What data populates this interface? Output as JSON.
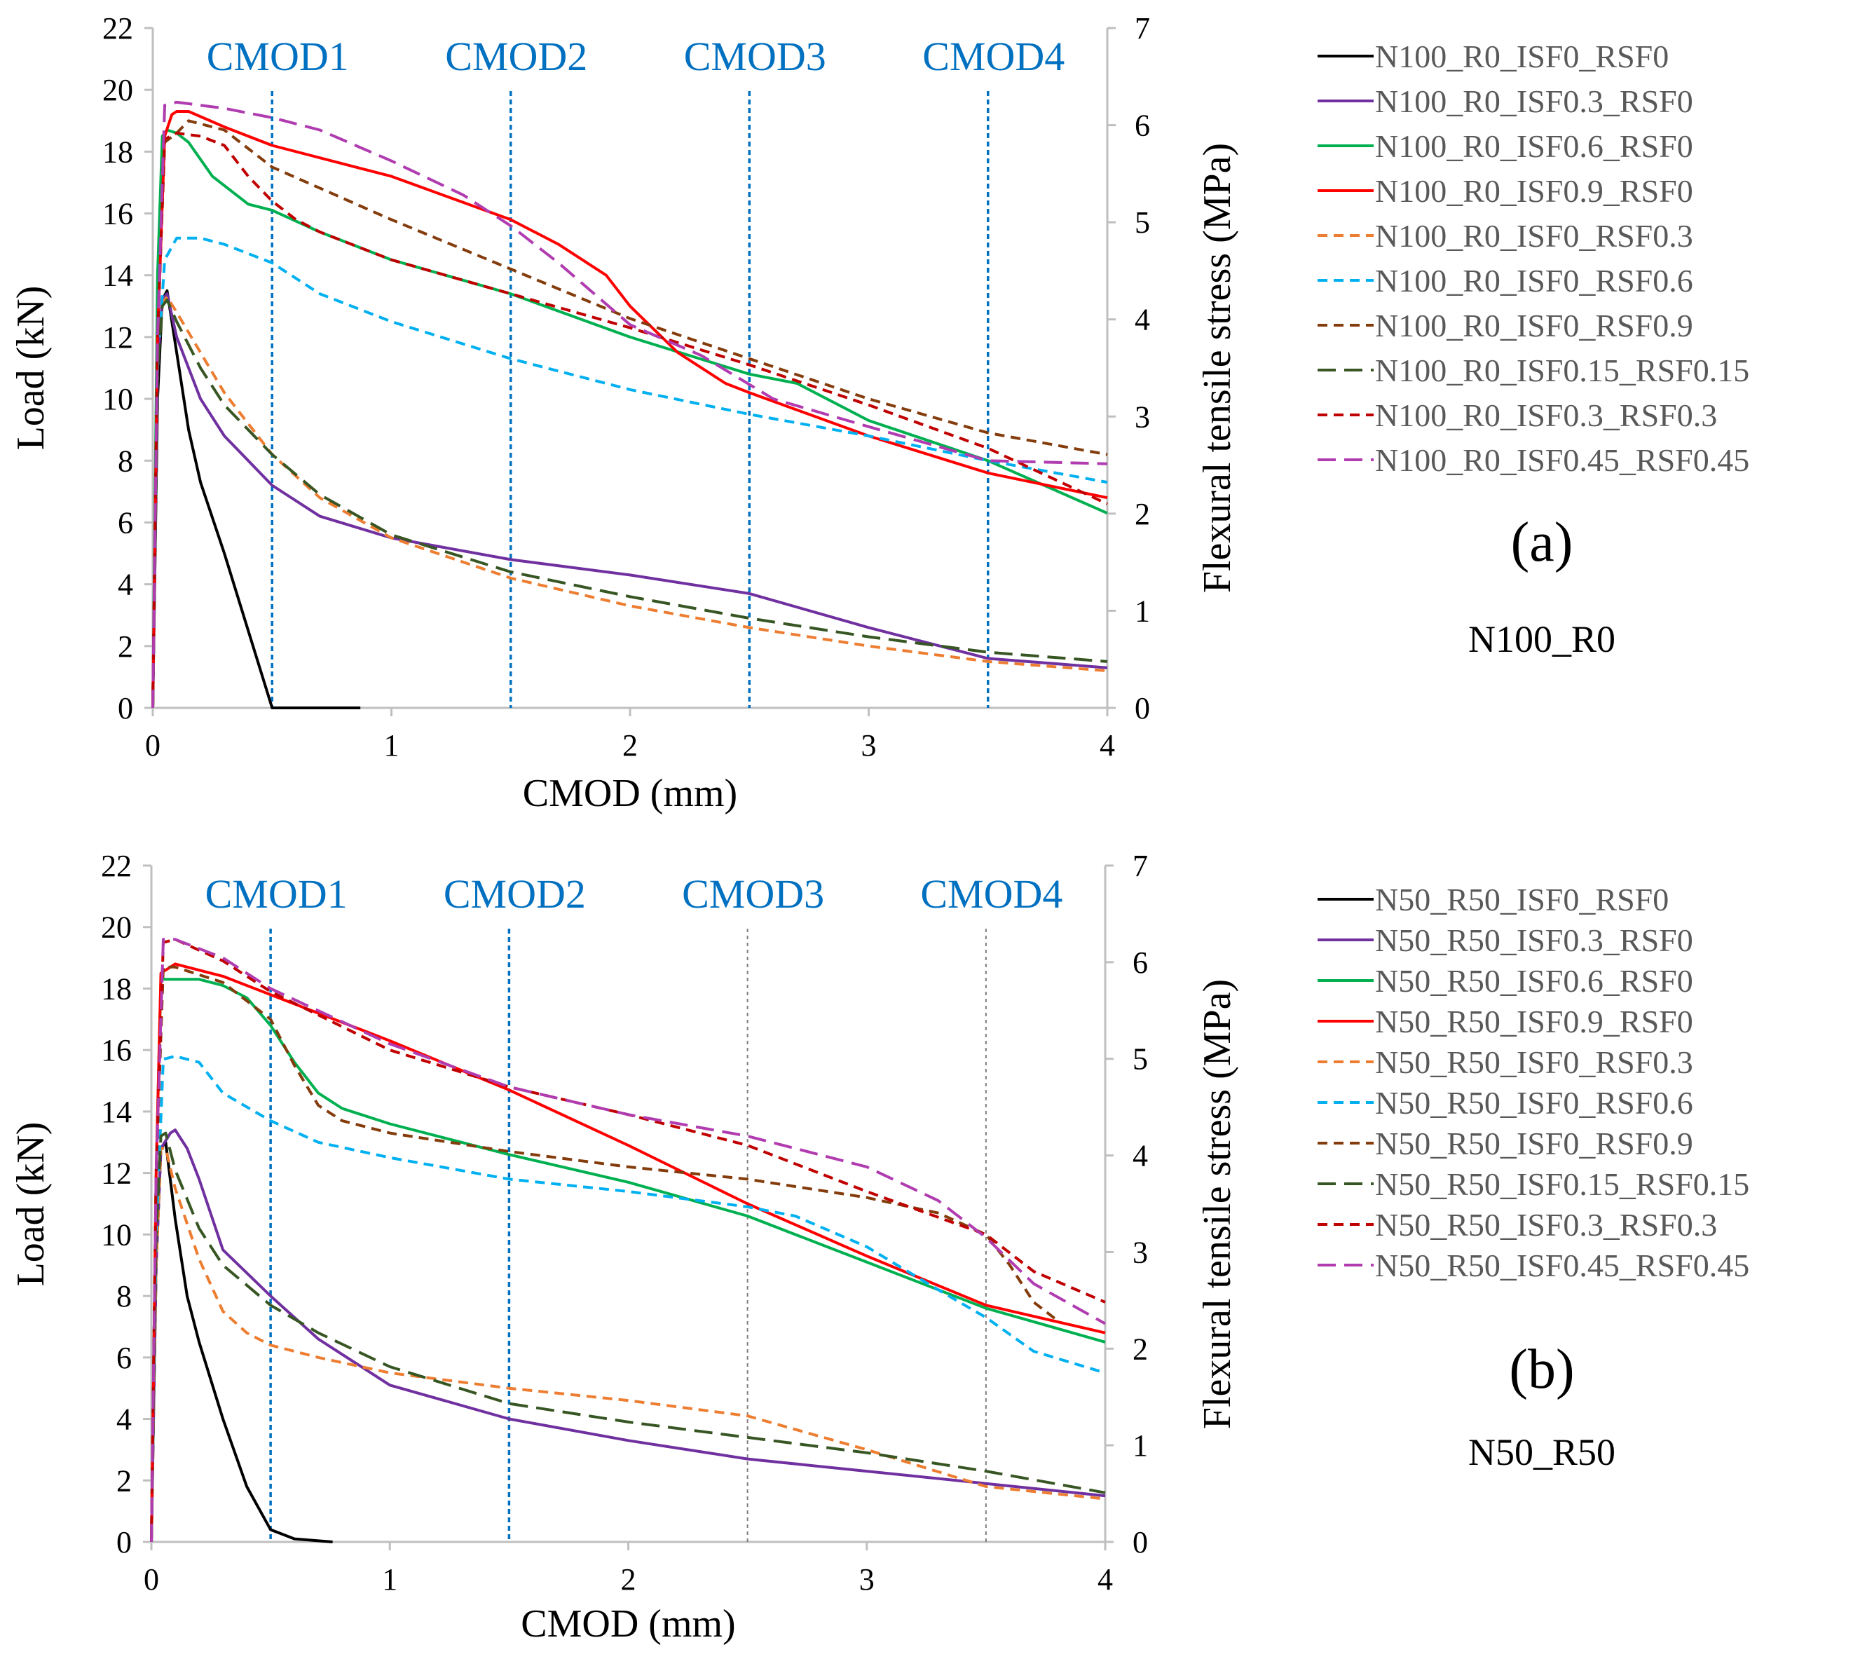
{
  "colors": {
    "N0": "#000000",
    "I3": "#7030a0",
    "I6": "#00b050",
    "I9": "#ff0000",
    "R3": "#ed7d31",
    "R6": "#00b0f0",
    "R9": "#843c0c",
    "M15": "#375623",
    "M3": "#c00000",
    "M45": "#b03cb0",
    "cmod": "#0070c0",
    "cmodgrey": "#7f7f7f",
    "axis": "#bfbfbf"
  },
  "chart_data": [
    {
      "type": "line",
      "panel_tag": "(a)",
      "panel_name": "N100_R0",
      "xlabel": "CMOD (mm)",
      "ylabel": "Load (kN)",
      "y2label": "Flexural tensile stress (MPa)",
      "xlim": [
        0,
        4
      ],
      "ylim": [
        0,
        22
      ],
      "y2lim": [
        0,
        7
      ],
      "xticks": [
        "0",
        "1",
        "2",
        "3",
        "4"
      ],
      "yticks": [
        "0",
        "2",
        "4",
        "6",
        "8",
        "10",
        "12",
        "14",
        "16",
        "18",
        "20",
        "22"
      ],
      "y2ticks": [
        "0",
        "1",
        "2",
        "3",
        "4",
        "5",
        "6",
        "7"
      ],
      "cmod_lines": [
        {
          "label": "CMOD1",
          "x": 0.5,
          "grey": false
        },
        {
          "label": "CMOD2",
          "x": 1.5,
          "grey": false
        },
        {
          "label": "CMOD3",
          "x": 2.5,
          "grey": false
        },
        {
          "label": "CMOD4",
          "x": 3.5,
          "grey": false
        }
      ],
      "series": [
        {
          "name": "N100_R0_ISF0_RSF0",
          "color": "N0",
          "dash": "solid",
          "x": [
            0,
            0.02,
            0.04,
            0.06,
            0.1,
            0.15,
            0.2,
            0.3,
            0.4,
            0.5,
            0.6,
            0.87
          ],
          "y": [
            0,
            10,
            13.2,
            13.5,
            11.5,
            9,
            7.3,
            5,
            2.5,
            0,
            0,
            0
          ]
        },
        {
          "name": "N100_R0_ISF0.3_RSF0",
          "color": "I3",
          "dash": "solid",
          "x": [
            0,
            0.02,
            0.04,
            0.06,
            0.1,
            0.2,
            0.3,
            0.5,
            0.7,
            1,
            1.5,
            2,
            2.5,
            3,
            3.5,
            4
          ],
          "y": [
            0,
            11,
            13.2,
            13.4,
            12,
            10,
            8.8,
            7.2,
            6.2,
            5.5,
            4.8,
            4.3,
            3.7,
            2.6,
            1.6,
            1.3
          ]
        },
        {
          "name": "N100_R0_ISF0.6_RSF0",
          "color": "I6",
          "dash": "solid",
          "x": [
            0,
            0.02,
            0.04,
            0.06,
            0.1,
            0.15,
            0.25,
            0.4,
            0.5,
            0.7,
            1,
            1.5,
            2,
            2.5,
            2.7,
            3,
            3.5,
            4
          ],
          "y": [
            0,
            14,
            18.5,
            18.7,
            18.6,
            18.3,
            17.2,
            16.3,
            16.1,
            15.4,
            14.5,
            13.4,
            12,
            10.8,
            10.5,
            9.3,
            8,
            6.3
          ]
        },
        {
          "name": "N100_R0_ISF0.9_RSF0",
          "color": "I9",
          "dash": "solid",
          "x": [
            0,
            0.02,
            0.05,
            0.08,
            0.1,
            0.15,
            0.3,
            0.5,
            1,
            1.5,
            1.7,
            1.9,
            2,
            2.2,
            2.4,
            2.5,
            3,
            3.5,
            4
          ],
          "y": [
            0,
            12,
            18.5,
            19.2,
            19.3,
            19.3,
            18.8,
            18.2,
            17.2,
            15.8,
            15,
            14,
            13,
            11.5,
            10.5,
            10.2,
            8.8,
            7.6,
            6.8
          ]
        },
        {
          "name": "N100_R0_ISF0_RSF0.3",
          "color": "R3",
          "dash": "dash",
          "x": [
            0,
            0.02,
            0.04,
            0.06,
            0.1,
            0.2,
            0.3,
            0.5,
            0.7,
            1,
            1.5,
            2,
            2.5,
            3,
            3.5,
            4
          ],
          "y": [
            0,
            11,
            13.1,
            13.3,
            12.8,
            11.5,
            10.2,
            8.2,
            6.8,
            5.5,
            4.2,
            3.3,
            2.6,
            2,
            1.5,
            1.2
          ]
        },
        {
          "name": "N100_R0_ISF0_RSF0.6",
          "color": "R6",
          "dash": "dash",
          "x": [
            0,
            0.02,
            0.05,
            0.1,
            0.2,
            0.3,
            0.5,
            0.7,
            1,
            1.5,
            2,
            2.5,
            3,
            3.5,
            4
          ],
          "y": [
            0,
            11,
            14.5,
            15.2,
            15.2,
            15,
            14.4,
            13.4,
            12.5,
            11.3,
            10.3,
            9.5,
            8.8,
            8,
            7.3
          ]
        },
        {
          "name": "N100_R0_ISF0_RSF0.9",
          "color": "R9",
          "dash": "dash",
          "x": [
            0,
            0.02,
            0.05,
            0.1,
            0.15,
            0.2,
            0.3,
            0.5,
            1,
            1.5,
            2,
            2.5,
            3,
            3.5,
            4
          ],
          "y": [
            0,
            12,
            18.3,
            18.6,
            19,
            18.9,
            18.7,
            17.5,
            15.8,
            14.2,
            12.6,
            11.3,
            10,
            8.9,
            8.2
          ]
        },
        {
          "name": "N100_R0_ISF0.15_RSF0.15",
          "color": "M15",
          "dash": "longdash",
          "x": [
            0,
            0.02,
            0.04,
            0.06,
            0.1,
            0.2,
            0.3,
            0.5,
            0.7,
            1,
            1.5,
            2,
            2.5,
            3,
            3.5,
            4
          ],
          "y": [
            0,
            11,
            13,
            13.2,
            12.5,
            11,
            9.8,
            8.2,
            6.9,
            5.6,
            4.4,
            3.6,
            2.9,
            2.3,
            1.8,
            1.5
          ]
        },
        {
          "name": "N100_R0_ISF0.3_RSF0.3",
          "color": "M3",
          "dash": "dash",
          "x": [
            0,
            0.02,
            0.05,
            0.1,
            0.2,
            0.3,
            0.4,
            0.5,
            0.6,
            0.7,
            1,
            1.5,
            2,
            2.5,
            3,
            3.5,
            4
          ],
          "y": [
            0,
            12,
            18.4,
            18.6,
            18.5,
            18.2,
            17.2,
            16.4,
            15.8,
            15.4,
            14.5,
            13.4,
            12.3,
            11.1,
            9.8,
            8.4,
            6.6
          ]
        },
        {
          "name": "N100_R0_ISF0.45_RSF0.45",
          "color": "M45",
          "dash": "longdash",
          "x": [
            0,
            0.02,
            0.05,
            0.1,
            0.2,
            0.3,
            0.5,
            0.7,
            1,
            1.3,
            1.5,
            1.7,
            2,
            2.3,
            2.6,
            3,
            3.5,
            4
          ],
          "y": [
            0,
            12,
            19.5,
            19.6,
            19.5,
            19.4,
            19.1,
            18.7,
            17.7,
            16.6,
            15.6,
            14.4,
            12.4,
            11.4,
            10,
            9.1,
            8,
            7.9
          ]
        }
      ]
    },
    {
      "type": "line",
      "panel_tag": "(b)",
      "panel_name": "N50_R50",
      "xlabel": "CMOD (mm)",
      "ylabel": "Load (kN)",
      "y2label": "Flexural tensile stress (MPa)",
      "xlim": [
        0,
        4
      ],
      "ylim": [
        0,
        22
      ],
      "y2lim": [
        0,
        7
      ],
      "xticks": [
        "0",
        "1",
        "2",
        "3",
        "4"
      ],
      "yticks": [
        "0",
        "2",
        "4",
        "6",
        "8",
        "10",
        "12",
        "14",
        "16",
        "18",
        "20",
        "22"
      ],
      "y2ticks": [
        "0",
        "1",
        "2",
        "3",
        "4",
        "5",
        "6",
        "7"
      ],
      "cmod_lines": [
        {
          "label": "CMOD1",
          "x": 0.5,
          "grey": false
        },
        {
          "label": "CMOD2",
          "x": 1.5,
          "grey": false
        },
        {
          "label": "CMOD3",
          "x": 2.5,
          "grey": true
        },
        {
          "label": "CMOD4",
          "x": 3.5,
          "grey": true
        }
      ],
      "series": [
        {
          "name": "N50_R50_ISF0_RSF0",
          "color": "N0",
          "dash": "solid",
          "x": [
            0,
            0.02,
            0.04,
            0.06,
            0.1,
            0.15,
            0.2,
            0.3,
            0.4,
            0.5,
            0.6,
            0.76
          ],
          "y": [
            0,
            9,
            12.8,
            13,
            10.5,
            8,
            6.5,
            4,
            1.8,
            0.4,
            0.1,
            0
          ]
        },
        {
          "name": "N50_R50_ISF0.3_RSF0",
          "color": "I3",
          "dash": "solid",
          "x": [
            0,
            0.02,
            0.04,
            0.08,
            0.1,
            0.15,
            0.2,
            0.3,
            0.5,
            0.7,
            1,
            1.5,
            2,
            2.5,
            3,
            3.5,
            4
          ],
          "y": [
            0,
            9,
            12.8,
            13.3,
            13.4,
            12.8,
            11.8,
            9.5,
            8,
            6.6,
            5.1,
            4,
            3.3,
            2.7,
            2.3,
            1.9,
            1.5
          ]
        },
        {
          "name": "N50_R50_ISF0.6_RSF0",
          "color": "I6",
          "dash": "solid",
          "x": [
            0,
            0.02,
            0.04,
            0.1,
            0.2,
            0.3,
            0.4,
            0.5,
            0.6,
            0.7,
            0.8,
            1,
            1.5,
            2,
            2.5,
            3,
            3.5,
            4
          ],
          "y": [
            0,
            12,
            18.3,
            18.3,
            18.3,
            18.1,
            17.7,
            16.8,
            15.6,
            14.6,
            14.1,
            13.6,
            12.6,
            11.7,
            10.6,
            9.1,
            7.6,
            6.5
          ]
        },
        {
          "name": "N50_R50_ISF0.9_RSF0",
          "color": "I9",
          "dash": "solid",
          "x": [
            0,
            0.02,
            0.04,
            0.1,
            0.3,
            0.5,
            1,
            1.5,
            2,
            2.5,
            3,
            3.5,
            4
          ],
          "y": [
            0,
            12,
            18.5,
            18.8,
            18.4,
            17.8,
            16.3,
            14.7,
            12.9,
            11,
            9.3,
            7.7,
            6.8
          ]
        },
        {
          "name": "N50_R50_ISF0_RSF0.3",
          "color": "R3",
          "dash": "dash",
          "x": [
            0,
            0.02,
            0.04,
            0.06,
            0.1,
            0.2,
            0.3,
            0.4,
            0.5,
            0.7,
            1,
            1.5,
            2,
            2.5,
            3,
            3.5,
            4
          ],
          "y": [
            0,
            9,
            12.8,
            12.8,
            11.5,
            9.2,
            7.5,
            6.8,
            6.4,
            6,
            5.5,
            5,
            4.6,
            4.1,
            3,
            1.8,
            1.4
          ]
        },
        {
          "name": "N50_R50_ISF0_RSF0.6",
          "color": "R6",
          "dash": "dash",
          "x": [
            0,
            0.02,
            0.05,
            0.1,
            0.2,
            0.3,
            0.5,
            0.7,
            1,
            1.5,
            2,
            2.5,
            2.7,
            3,
            3.3,
            3.5,
            3.7,
            4
          ],
          "y": [
            0,
            10,
            15.7,
            15.8,
            15.6,
            14.6,
            13.7,
            13,
            12.5,
            11.8,
            11.4,
            10.9,
            10.6,
            9.6,
            8.2,
            7.3,
            6.2,
            5.5
          ]
        },
        {
          "name": "N50_R50_ISF0_RSF0.9",
          "color": "R9",
          "dash": "dash",
          "x": [
            0,
            0.02,
            0.05,
            0.1,
            0.3,
            0.5,
            0.6,
            0.7,
            0.8,
            1,
            1.5,
            2,
            2.5,
            3,
            3.3,
            3.5,
            3.6,
            3.7,
            3.8
          ],
          "y": [
            0,
            12,
            18.7,
            18.7,
            18.2,
            17,
            15.5,
            14.2,
            13.7,
            13.3,
            12.7,
            12.2,
            11.8,
            11.2,
            10.7,
            10,
            9,
            7.8,
            7.2
          ]
        },
        {
          "name": "N50_R50_ISF0.15_RSF0.15",
          "color": "M15",
          "dash": "longdash",
          "x": [
            0,
            0.02,
            0.04,
            0.06,
            0.1,
            0.2,
            0.3,
            0.5,
            0.7,
            1,
            1.5,
            2,
            2.5,
            3,
            3.5,
            4
          ],
          "y": [
            0,
            10,
            13.2,
            13.3,
            12.1,
            10.2,
            9,
            7.7,
            6.8,
            5.7,
            4.5,
            3.9,
            3.4,
            2.9,
            2.3,
            1.6
          ]
        },
        {
          "name": "N50_R50_ISF0.3_RSF0.3",
          "color": "M3",
          "dash": "dash",
          "x": [
            0,
            0.02,
            0.05,
            0.1,
            0.3,
            0.5,
            1,
            1.5,
            2,
            2.5,
            3,
            3.5,
            3.7,
            4
          ],
          "y": [
            0,
            12,
            19.5,
            19.6,
            18.9,
            17.9,
            16,
            14.8,
            13.9,
            12.9,
            11.4,
            10,
            8.8,
            7.8
          ]
        },
        {
          "name": "N50_R50_ISF0.45_RSF0.45",
          "color": "M45",
          "dash": "longdash",
          "x": [
            0,
            0.02,
            0.05,
            0.1,
            0.3,
            0.5,
            1,
            1.5,
            2,
            2.5,
            3,
            3.3,
            3.5,
            3.7,
            4
          ],
          "y": [
            0,
            12,
            19.6,
            19.6,
            19,
            18,
            16.2,
            14.8,
            13.9,
            13.2,
            12.2,
            11.1,
            9.9,
            8.4,
            7.1
          ]
        }
      ]
    }
  ]
}
